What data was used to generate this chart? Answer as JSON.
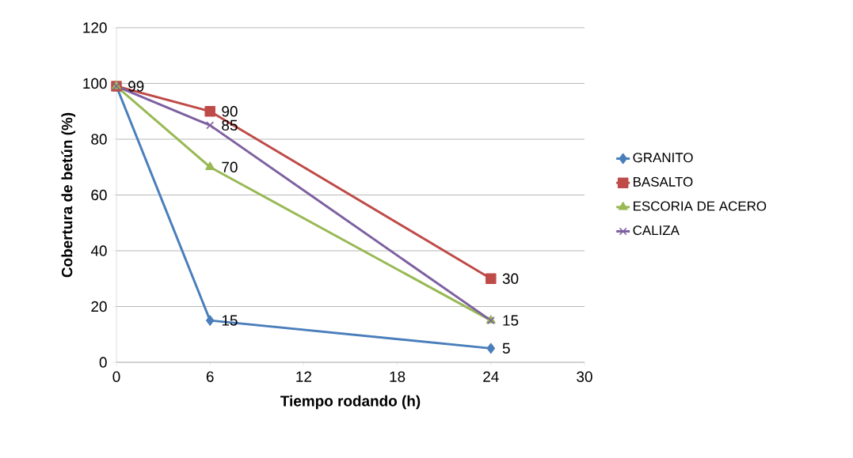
{
  "chart_data": {
    "type": "line",
    "xlabel": "Tiempo rodando (h)",
    "ylabel": "Cobertura de betún (%)",
    "x": [
      0,
      6,
      24
    ],
    "xlim": [
      0,
      30
    ],
    "xticks": [
      0,
      6,
      12,
      18,
      24,
      30
    ],
    "ylim": [
      0,
      120
    ],
    "yticks": [
      0,
      20,
      40,
      60,
      80,
      100,
      120
    ],
    "grid": "y",
    "legend": "right",
    "line_style": "solid",
    "series": [
      {
        "name": "GRANITO",
        "color": "#4a7ebb",
        "marker": "diamond",
        "values": [
          99,
          15,
          5
        ],
        "value_labels": [
          "99",
          "15",
          "5"
        ]
      },
      {
        "name": "BASALTO",
        "color": "#be4b48",
        "marker": "square",
        "values": [
          99,
          90,
          30
        ],
        "value_labels": [
          null,
          "90",
          "30"
        ]
      },
      {
        "name": "ESCORIA DE ACERO",
        "color": "#98b954",
        "marker": "triangle",
        "values": [
          99,
          70,
          15
        ],
        "value_labels": [
          null,
          "70",
          "15"
        ]
      },
      {
        "name": "CALIZA",
        "color": "#7d60a0",
        "marker": "cross",
        "values": [
          99,
          85,
          15
        ],
        "value_labels": [
          null,
          "85",
          null
        ]
      }
    ]
  }
}
